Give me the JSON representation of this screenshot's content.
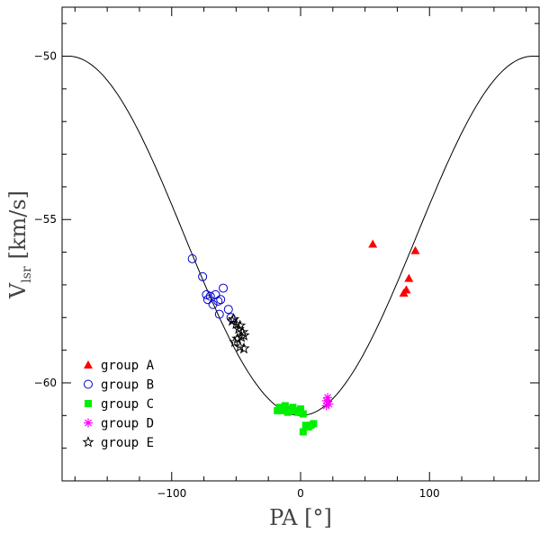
{
  "chart_data": {
    "type": "scatter",
    "title": "",
    "xlabel": "PA [°]",
    "ylabel_main": "V",
    "ylabel_sub": "lsr",
    "ylabel_units": "[km/s]",
    "xlim": [
      -185,
      185
    ],
    "ylim": [
      -63,
      -48.5
    ],
    "xticks": [
      -100,
      0,
      100
    ],
    "xtick_labels": [
      "−100",
      "0",
      "100"
    ],
    "yticks": [
      -50,
      -55,
      -60
    ],
    "ytick_labels": [
      "−50",
      "−55",
      "−60"
    ],
    "grid": false,
    "legend_position": "bottom-left",
    "model_curve": {
      "name": "model",
      "center": -55.5,
      "amplitude": 5.5,
      "x_range": [
        -178,
        178
      ]
    },
    "series": [
      {
        "name": "group A",
        "marker": "triangle",
        "color": "#ff0000",
        "points": [
          [
            56,
            -55.75
          ],
          [
            89,
            -55.95
          ],
          [
            84,
            -56.8
          ],
          [
            82,
            -57.15
          ],
          [
            80,
            -57.25
          ]
        ]
      },
      {
        "name": "group B",
        "marker": "open-circle",
        "color": "#0000cc",
        "points": [
          [
            -84,
            -56.2
          ],
          [
            -76,
            -56.75
          ],
          [
            -73,
            -57.3
          ],
          [
            -72,
            -57.45
          ],
          [
            -70,
            -57.35
          ],
          [
            -68,
            -57.6
          ],
          [
            -66,
            -57.3
          ],
          [
            -64,
            -57.5
          ],
          [
            -62,
            -57.45
          ],
          [
            -60,
            -57.1
          ],
          [
            -56,
            -57.75
          ],
          [
            -54,
            -58.0
          ],
          [
            -63,
            -57.9
          ]
        ]
      },
      {
        "name": "group C",
        "marker": "filled-square",
        "color": "#00ee00",
        "points": [
          [
            -16,
            -60.75
          ],
          [
            -14,
            -60.85
          ],
          [
            -12,
            -60.7
          ],
          [
            -10,
            -60.9
          ],
          [
            -8,
            -60.8
          ],
          [
            -6,
            -60.75
          ],
          [
            -4,
            -60.85
          ],
          [
            -2,
            -60.9
          ],
          [
            0,
            -60.8
          ],
          [
            2,
            -60.95
          ],
          [
            4,
            -61.3
          ],
          [
            6,
            -61.35
          ],
          [
            8,
            -61.3
          ],
          [
            10,
            -61.25
          ],
          [
            2,
            -61.5
          ],
          [
            -18,
            -60.85
          ]
        ]
      },
      {
        "name": "group D",
        "marker": "asterisk",
        "color": "#ff00ff",
        "points": [
          [
            20,
            -60.55
          ],
          [
            21,
            -60.45
          ],
          [
            22,
            -60.65
          ],
          [
            20,
            -60.7
          ]
        ]
      },
      {
        "name": "group E",
        "marker": "open-star",
        "color": "#000000",
        "points": [
          [
            -52,
            -58.05
          ],
          [
            -50,
            -58.2
          ],
          [
            -48,
            -58.35
          ],
          [
            -47,
            -58.25
          ],
          [
            -45,
            -58.45
          ],
          [
            -44,
            -58.55
          ],
          [
            -46,
            -58.6
          ],
          [
            -49,
            -58.65
          ],
          [
            -51,
            -58.75
          ],
          [
            -47,
            -58.9
          ],
          [
            -44,
            -58.95
          ],
          [
            -53,
            -58.1
          ]
        ]
      }
    ]
  }
}
